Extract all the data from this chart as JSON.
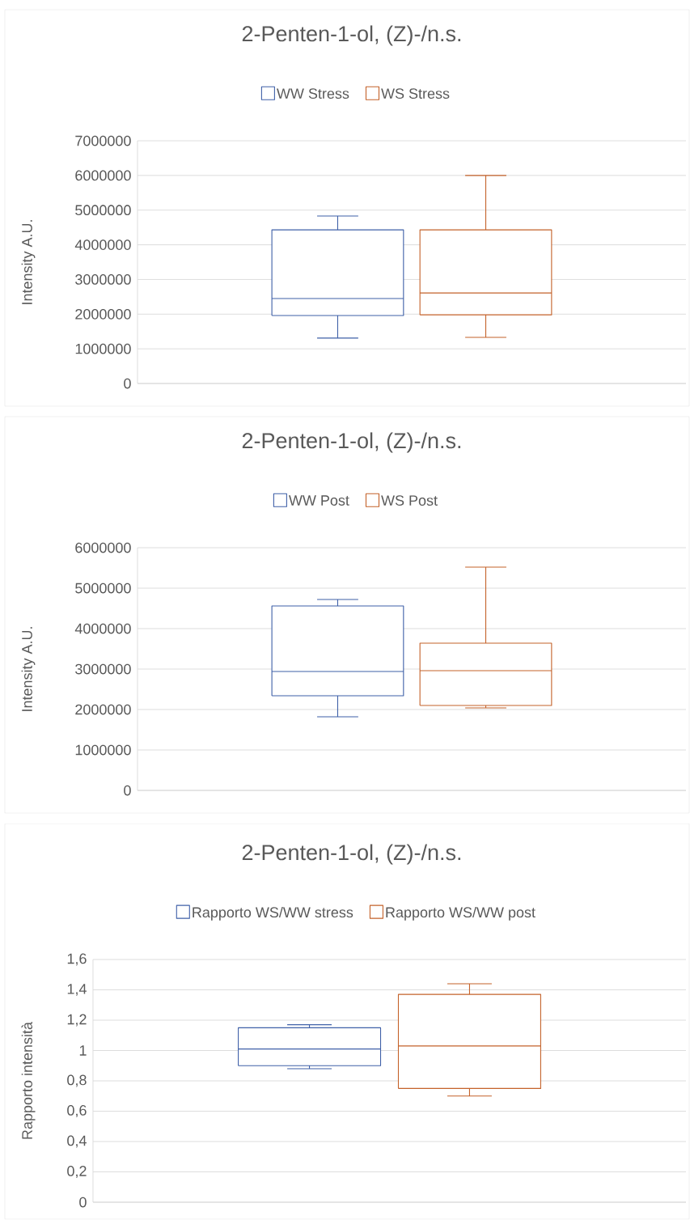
{
  "chart_data": [
    {
      "type": "box",
      "title": "2-Penten-1-ol, (Z)-/n.s.",
      "ylabel": "Intensity A.U.",
      "categories": [
        null
      ],
      "tick_labels": "y",
      "grid": "y",
      "legend": "top",
      "ylim": [
        0,
        7000000
      ],
      "yticks": [
        0,
        1000000,
        2000000,
        3000000,
        4000000,
        5000000,
        6000000,
        7000000
      ],
      "series": [
        {
          "name": "WW Stress",
          "color": "#3f60a8",
          "boxes": [
            {
              "low": 1310000,
              "q1": 1960000,
              "median": 2450000,
              "q3": 4430000,
              "high": 4830000
            }
          ]
        },
        {
          "name": "WS Stress",
          "color": "#c4622a",
          "boxes": [
            {
              "low": 1330000,
              "q1": 1980000,
              "median": 2610000,
              "q3": 4430000,
              "high": 6000000
            }
          ]
        }
      ]
    },
    {
      "type": "box",
      "title": "2-Penten-1-ol, (Z)-/n.s.",
      "ylabel": "Intensity A.U.",
      "categories": [
        null
      ],
      "tick_labels": "y",
      "grid": "y",
      "legend": "top",
      "ylim": [
        0,
        6000000
      ],
      "yticks": [
        0,
        1000000,
        2000000,
        3000000,
        4000000,
        5000000,
        6000000
      ],
      "series": [
        {
          "name": "WW Post",
          "color": "#3f60a8",
          "boxes": [
            {
              "low": 1820000,
              "q1": 2340000,
              "median": 2940000,
              "q3": 4560000,
              "high": 4720000
            }
          ]
        },
        {
          "name": "WS Post",
          "color": "#c4622a",
          "boxes": [
            {
              "low": 2040000,
              "q1": 2100000,
              "median": 2960000,
              "q3": 3640000,
              "high": 5520000
            }
          ]
        }
      ]
    },
    {
      "type": "box",
      "title": "2-Penten-1-ol, (Z)-/n.s.",
      "ylabel": "Rapporto intensità",
      "categories": [
        null
      ],
      "tick_labels": "y",
      "grid": "y",
      "legend": "top",
      "ylim": [
        0,
        1.6
      ],
      "yticks": [
        0,
        {
          "value": 0.2,
          "label": "0,2"
        },
        {
          "value": 0.4,
          "label": "0,4"
        },
        {
          "value": 0.6,
          "label": "0,6"
        },
        {
          "value": 0.8,
          "label": "0,8"
        },
        1,
        {
          "value": 1.2,
          "label": "1,2"
        },
        {
          "value": 1.4,
          "label": "1,4"
        },
        {
          "value": 1.6,
          "label": "1,6"
        }
      ],
      "series": [
        {
          "name": "Rapporto WS/WW stress",
          "color": "#3f60a8",
          "boxes": [
            {
              "low": 0.88,
              "q1": 0.9,
              "median": 1.01,
              "q3": 1.15,
              "high": 1.17
            }
          ]
        },
        {
          "name": "Rapporto WS/WW post",
          "color": "#c4622a",
          "boxes": [
            {
              "low": 0.7,
              "q1": 0.75,
              "median": 1.03,
              "q3": 1.37,
              "high": 1.44
            }
          ]
        }
      ]
    }
  ]
}
